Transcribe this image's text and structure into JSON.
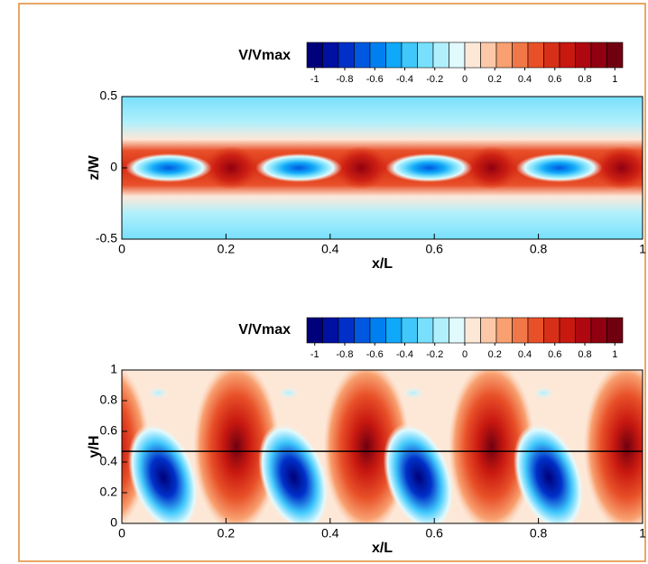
{
  "chart_data": [
    {
      "type": "contour",
      "colorbar_label": "V/Vmax",
      "xlabel": "x/L",
      "ylabel": "z/W",
      "xlim": [
        0,
        1
      ],
      "xticks": [
        0,
        0.2,
        0.4,
        0.6,
        0.8,
        1
      ],
      "ylim": [
        -0.5,
        0.5
      ],
      "yticks": [
        -0.5,
        0,
        0.5
      ],
      "colorbar": {
        "lim": [
          -1,
          1
        ],
        "ticks": [
          -1,
          -0.8,
          -0.6,
          -0.4,
          -0.2,
          0,
          0.2,
          0.4,
          0.6,
          0.8,
          1
        ],
        "colors": [
          "#00007a",
          "#0010a0",
          "#0030c8",
          "#0058e0",
          "#0080f0",
          "#10a8f8",
          "#40c8fc",
          "#78e0fc",
          "#b0f0fc",
          "#e0fafe",
          "#fde8d8",
          "#fcc8a8",
          "#f8a070",
          "#f07848",
          "#e85028",
          "#d83018",
          "#c81810",
          "#b00810",
          "#900010",
          "#700010"
        ]
      }
    },
    {
      "type": "contour",
      "colorbar_label": "V/Vmax",
      "xlabel": "x/L",
      "ylabel": "y/H",
      "xlim": [
        0,
        1
      ],
      "xticks": [
        0,
        0.2,
        0.4,
        0.6,
        0.8,
        1
      ],
      "ylim": [
        0,
        1
      ],
      "yticks": [
        0,
        0.2,
        0.4,
        0.6,
        0.8,
        1
      ],
      "hline": 0.47,
      "colorbar": {
        "lim": [
          -1,
          1
        ],
        "ticks": [
          -1,
          -0.8,
          -0.6,
          -0.4,
          -0.2,
          0,
          0.2,
          0.4,
          0.6,
          0.8,
          1
        ],
        "colors": [
          "#00007a",
          "#0010a0",
          "#0030c8",
          "#0058e0",
          "#0080f0",
          "#10a8f8",
          "#40c8fc",
          "#78e0fc",
          "#b0f0fc",
          "#e0fafe",
          "#fde8d8",
          "#fcc8a8",
          "#f8a070",
          "#f07848",
          "#e85028",
          "#d83018",
          "#c81810",
          "#b00810",
          "#900010",
          "#700010"
        ]
      }
    }
  ]
}
